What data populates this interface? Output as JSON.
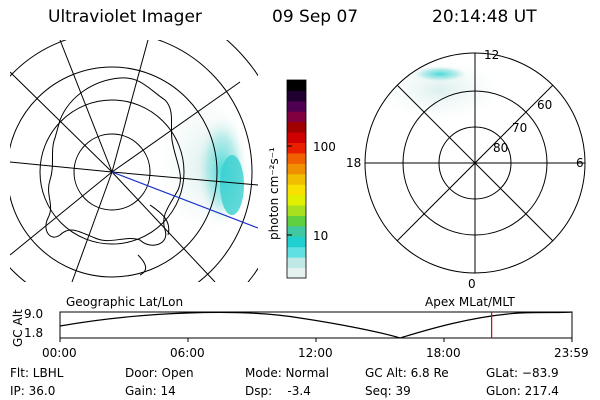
{
  "header": {
    "instrument": "Ultraviolet Imager",
    "date": "09 Sep 07",
    "time": "20:14:48 UT"
  },
  "colorbar": {
    "unit_label": "photon cm⁻²s⁻¹",
    "ticks": [
      "100",
      "10"
    ],
    "colors": [
      "#e6f2f0",
      "#bfe8e6",
      "#60e0e0",
      "#20d0d0",
      "#40c8a0",
      "#60d040",
      "#a8e020",
      "#e0f000",
      "#f8e000",
      "#f0c000",
      "#f09000",
      "#f06000",
      "#e82000",
      "#d00000",
      "#a00000",
      "#800040",
      "#500050",
      "#200030",
      "#000000"
    ]
  },
  "left_map": {
    "label": "Geographic Lat/Lon"
  },
  "right_map": {
    "label": "Apex MLat/MLT",
    "mlt_labels": {
      "top": "12",
      "bottom": "0",
      "left": "18",
      "right": "6"
    },
    "lat_labels": [
      "60",
      "70",
      "80"
    ]
  },
  "altitude_plot": {
    "axis_label": "GC Alt",
    "y_ticks": [
      "9.0",
      "1.8"
    ],
    "x_ticks": [
      "00:00",
      "06:00",
      "12:00",
      "18:00",
      "23:59"
    ],
    "current_time_fraction": 0.843
  },
  "info": {
    "filter": "Flt: LBHL",
    "ip": "IP: 36.0",
    "door": "Door: Open",
    "gain": "Gain: 14",
    "mode": "Mode: Normal",
    "dsp": "Dsp:    -3.4",
    "gc_alt": "GC Alt: 6.8 Re",
    "seq": "Seq: 39",
    "glat": "GLat: −83.9",
    "glon": "GLon: 217.4"
  }
}
